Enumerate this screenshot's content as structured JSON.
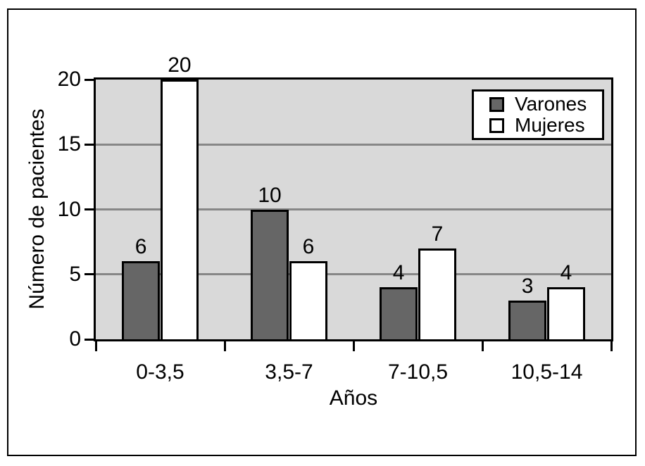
{
  "figure": {
    "background": "#ffffff",
    "border_color": "#000000"
  },
  "chart_data": {
    "type": "bar",
    "title": "",
    "xlabel": "Años",
    "ylabel": "Número de pacientes",
    "categories": [
      "0-3,5",
      "3,5-7",
      "7-10,5",
      "10,5-14"
    ],
    "series": [
      {
        "name": "Varones",
        "color": "#666666",
        "values": [
          6,
          10,
          4,
          3
        ]
      },
      {
        "name": "Mujeres",
        "color": "#ffffff",
        "values": [
          20,
          6,
          7,
          4
        ]
      }
    ],
    "data_labels": {
      "Varones": [
        "6",
        "10",
        "4",
        "3"
      ],
      "Mujeres": [
        "20",
        "6",
        "7",
        "4"
      ]
    },
    "ylim": [
      0,
      20
    ],
    "yticks": [
      "0",
      "5",
      "10",
      "15",
      "20"
    ],
    "grid": true,
    "gridline_color": "#878787",
    "plot_background": "#d9d9d9",
    "bar_border_color": "#000000",
    "legend_position": "top-right",
    "legend_border_color": "#000000"
  }
}
